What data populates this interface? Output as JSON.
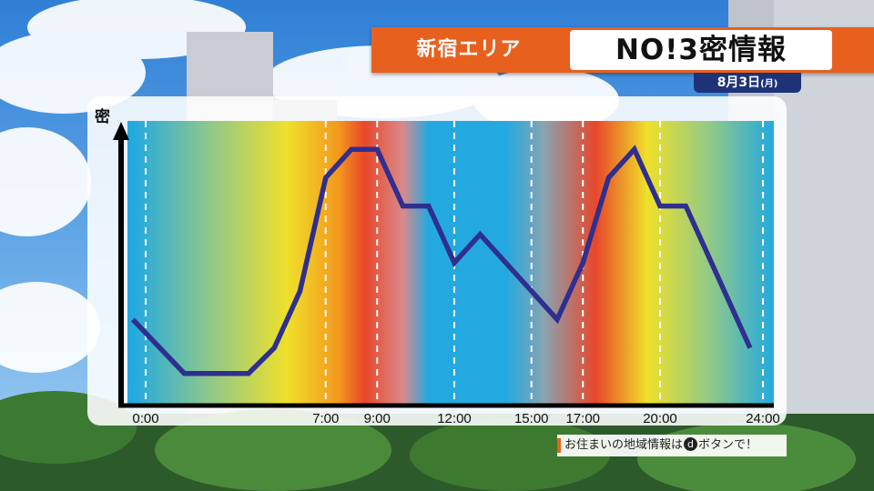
{
  "header": {
    "area_label": "新宿エリア",
    "title": "NO!3密情報",
    "date_main": "8月3日",
    "date_weekday": "(月)"
  },
  "footer": {
    "note_prefix": "お住まいの地域情報は",
    "d_button": "d",
    "note_suffix": "ボタンで！"
  },
  "colors": {
    "accent_orange": "#e8601e",
    "navy": "#1e3278",
    "line": "#2f2f8f",
    "low_cyan": "#23a9e0",
    "mid_yellow": "#efe02a",
    "high_red": "#e8472a"
  },
  "chart_data": {
    "type": "line",
    "title": "",
    "xlabel": "",
    "ylabel": "密",
    "x_range": [
      0,
      24
    ],
    "y_range": [
      0,
      10
    ],
    "tick_hours": [
      0,
      7,
      9,
      12,
      15,
      17,
      20,
      24
    ],
    "tick_labels": [
      "0:00",
      "7:00",
      "9:00",
      "12:00",
      "15:00",
      "17:00",
      "20:00",
      "24:00"
    ],
    "grid": "vertical dashed lines at tick times",
    "series": [
      {
        "points": [
          [
            -0.5,
            3.0
          ],
          [
            1.5,
            1.1
          ],
          [
            4.0,
            1.1
          ],
          [
            5.0,
            2.0
          ],
          [
            6.0,
            4.0
          ],
          [
            7.0,
            8.0
          ],
          [
            8.0,
            9.0
          ],
          [
            9.0,
            9.0
          ],
          [
            10.0,
            7.0
          ],
          [
            11.0,
            7.0
          ],
          [
            12.0,
            5.0
          ],
          [
            13.0,
            6.0
          ],
          [
            15.0,
            4.0
          ],
          [
            16.0,
            3.0
          ],
          [
            17.0,
            5.0
          ],
          [
            18.0,
            8.0
          ],
          [
            19.0,
            9.0
          ],
          [
            20.0,
            7.0
          ],
          [
            21.0,
            7.0
          ],
          [
            23.5,
            2.0
          ]
        ]
      }
    ],
    "background_gradient_by_hour": [
      {
        "hour": -0.5,
        "level": "cyan"
      },
      {
        "hour": 2.5,
        "level": "green"
      },
      {
        "hour": 5.5,
        "level": "yellow"
      },
      {
        "hour": 7.5,
        "level": "orange"
      },
      {
        "hour": 8.5,
        "level": "red"
      },
      {
        "hour": 10.0,
        "level": "pink"
      },
      {
        "hour": 11.0,
        "level": "cyan"
      },
      {
        "hour": 14.0,
        "level": "cyan"
      },
      {
        "hour": 15.5,
        "level": "gray"
      },
      {
        "hour": 17.5,
        "level": "red"
      },
      {
        "hour": 19.5,
        "level": "yellow"
      },
      {
        "hour": 22.0,
        "level": "green"
      },
      {
        "hour": 24.5,
        "level": "cyan"
      }
    ]
  }
}
